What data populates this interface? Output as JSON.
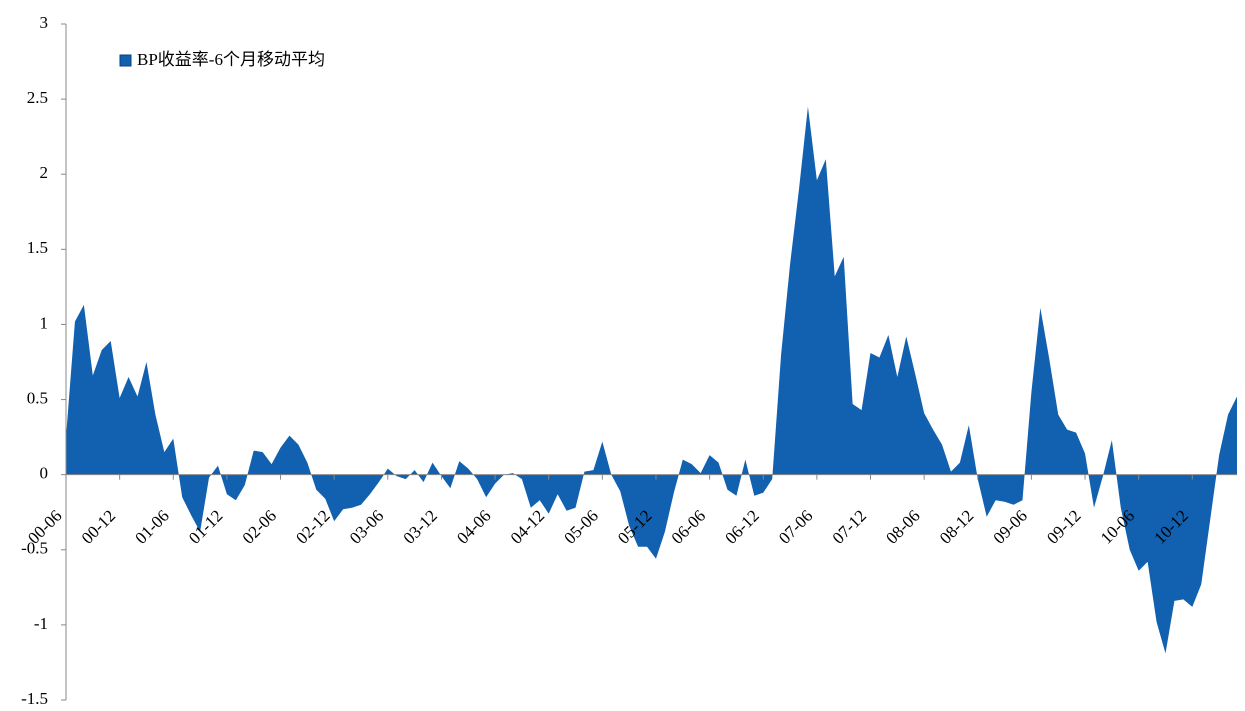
{
  "chart_data": {
    "type": "area",
    "categories": [
      "00-06",
      null,
      null,
      null,
      null,
      null,
      "00-12",
      null,
      null,
      null,
      null,
      null,
      "01-06",
      null,
      null,
      null,
      null,
      null,
      "01-12",
      null,
      null,
      null,
      null,
      null,
      "02-06",
      null,
      null,
      null,
      null,
      null,
      "02-12",
      null,
      null,
      null,
      null,
      null,
      "03-06",
      null,
      null,
      null,
      null,
      null,
      "03-12",
      null,
      null,
      null,
      null,
      null,
      "04-06",
      null,
      null,
      null,
      null,
      null,
      "04-12",
      null,
      null,
      null,
      null,
      null,
      "05-06",
      null,
      null,
      null,
      null,
      null,
      "05-12",
      null,
      null,
      null,
      null,
      null,
      "06-06",
      null,
      null,
      null,
      null,
      null,
      "06-12",
      null,
      null,
      null,
      null,
      null,
      "07-06",
      null,
      null,
      null,
      null,
      null,
      "07-12",
      null,
      null,
      null,
      null,
      null,
      "08-06",
      null,
      null,
      null,
      null,
      null,
      "08-12",
      null,
      null,
      null,
      null,
      null,
      "09-06",
      null,
      null,
      null,
      null,
      null,
      "09-12",
      null,
      null,
      null,
      null,
      null,
      "10-06",
      null,
      null,
      null,
      null,
      null,
      "10-12",
      null,
      null,
      null,
      null,
      null
    ],
    "series": [
      {
        "name": "BP收益率-6个月移动平均",
        "color": "#1260b0",
        "values": [
          0.25,
          1.02,
          1.13,
          0.66,
          0.83,
          0.89,
          0.51,
          0.65,
          0.52,
          0.75,
          0.4,
          0.15,
          0.24,
          -0.15,
          -0.27,
          -0.38,
          -0.02,
          0.06,
          -0.13,
          -0.17,
          -0.07,
          0.16,
          0.15,
          0.07,
          0.18,
          0.26,
          0.2,
          0.08,
          -0.1,
          -0.16,
          -0.31,
          -0.23,
          -0.22,
          -0.2,
          -0.13,
          -0.05,
          0.04,
          -0.01,
          -0.03,
          0.03,
          -0.05,
          0.08,
          -0.01,
          -0.09,
          0.09,
          0.04,
          -0.03,
          -0.15,
          -0.06,
          0.0,
          0.01,
          -0.03,
          -0.22,
          -0.17,
          -0.26,
          -0.13,
          -0.24,
          -0.22,
          0.02,
          0.03,
          0.22,
          0.0,
          -0.11,
          -0.34,
          -0.48,
          -0.48,
          -0.56,
          -0.38,
          -0.12,
          0.1,
          0.07,
          0.01,
          0.13,
          0.08,
          -0.1,
          -0.14,
          0.1,
          -0.14,
          -0.12,
          -0.03,
          0.8,
          1.4,
          1.9,
          2.45,
          1.96,
          2.1,
          1.32,
          1.45,
          0.47,
          0.43,
          0.81,
          0.78,
          0.93,
          0.65,
          0.92,
          0.67,
          0.41,
          0.3,
          0.2,
          0.02,
          0.08,
          0.33,
          -0.03,
          -0.28,
          -0.17,
          -0.18,
          -0.2,
          -0.17,
          0.55,
          1.11,
          0.77,
          0.4,
          0.3,
          0.28,
          0.14,
          -0.22,
          -0.01,
          0.23,
          -0.22,
          -0.5,
          -0.64,
          -0.58,
          -0.98,
          -1.19,
          -0.84,
          -0.83,
          -0.88,
          -0.73,
          -0.3,
          0.13,
          0.4,
          0.52
        ]
      }
    ],
    "ylim": [
      -1.5,
      3
    ],
    "yticks": [
      -1.5,
      -1,
      -0.5,
      0,
      0.5,
      1,
      1.5,
      2,
      2.5,
      3
    ]
  }
}
